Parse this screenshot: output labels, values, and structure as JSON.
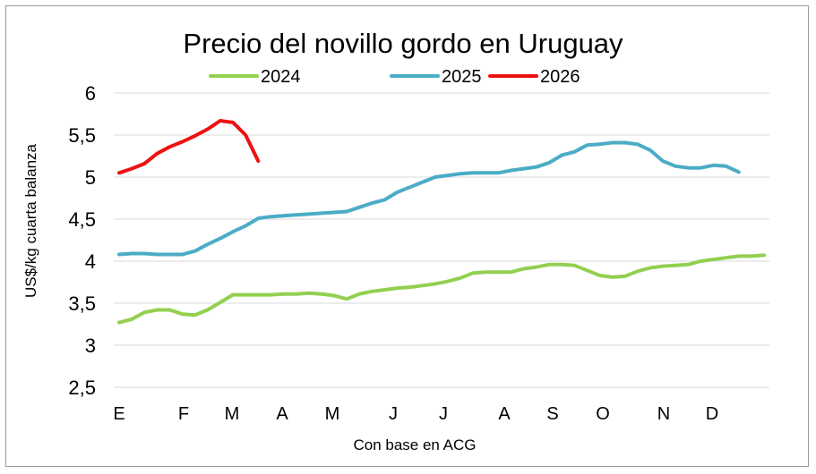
{
  "chart_data": {
    "type": "line",
    "title": "Precio del novillo gordo en Uruguay",
    "xlabel": "Con base en ACG",
    "ylabel": "US$/kg cuarta balanza",
    "ylim": [
      2.5,
      6
    ],
    "y_ticks": [
      "2,5",
      "3",
      "3,5",
      "4",
      "4,5",
      "5",
      "5,5",
      "6"
    ],
    "x_categories": [
      "E",
      "F",
      "M",
      "A",
      "M",
      "J",
      "J",
      "A",
      "S",
      "O",
      "N",
      "D"
    ],
    "x_unit": "week of year",
    "grid": true,
    "legend_position": "top",
    "series": [
      {
        "name": "2024",
        "color": "#92d050",
        "x": [
          1,
          2,
          3,
          4,
          5,
          6,
          7,
          8,
          9,
          10,
          11,
          12,
          13,
          14,
          15,
          16,
          17,
          18,
          19,
          20,
          21,
          22,
          23,
          24,
          25,
          26,
          27,
          28,
          29,
          30,
          31,
          32,
          33,
          34,
          35,
          36,
          37,
          38,
          39,
          40,
          41,
          42,
          43,
          44,
          45,
          46,
          47,
          48,
          49,
          50,
          51,
          52
        ],
        "values": [
          3.27,
          3.31,
          3.39,
          3.42,
          3.42,
          3.37,
          3.36,
          3.42,
          3.51,
          3.6,
          3.6,
          3.6,
          3.6,
          3.61,
          3.61,
          3.62,
          3.61,
          3.59,
          3.55,
          3.61,
          3.64,
          3.66,
          3.68,
          3.69,
          3.71,
          3.73,
          3.76,
          3.8,
          3.86,
          3.87,
          3.87,
          3.87,
          3.91,
          3.93,
          3.96,
          3.96,
          3.95,
          3.89,
          3.83,
          3.81,
          3.82,
          3.88,
          3.92,
          3.94,
          3.95,
          3.96,
          4.0,
          4.02,
          4.04,
          4.06,
          4.06,
          4.07
        ]
      },
      {
        "name": "2025",
        "color": "#4bacc6",
        "x": [
          1,
          2,
          3,
          4,
          5,
          6,
          7,
          8,
          9,
          10,
          11,
          12,
          13,
          14,
          15,
          16,
          17,
          18,
          19,
          20,
          21,
          22,
          23,
          24,
          25,
          26,
          27,
          28,
          29,
          30,
          31,
          32,
          33,
          34,
          35,
          36,
          37,
          38,
          39,
          40,
          41,
          42,
          43,
          44,
          45,
          46,
          47,
          48,
          49,
          50
        ],
        "values": [
          4.08,
          4.09,
          4.09,
          4.08,
          4.08,
          4.08,
          4.12,
          4.2,
          4.27,
          4.35,
          4.42,
          4.51,
          4.53,
          4.54,
          4.55,
          4.56,
          4.57,
          4.58,
          4.59,
          4.64,
          4.69,
          4.73,
          4.82,
          4.88,
          4.94,
          5.0,
          5.02,
          5.04,
          5.05,
          5.05,
          5.05,
          5.08,
          5.1,
          5.12,
          5.17,
          5.26,
          5.3,
          5.38,
          5.39,
          5.41,
          5.41,
          5.39,
          5.32,
          5.19,
          5.13,
          5.11,
          5.11,
          5.14,
          5.13,
          5.06
        ]
      },
      {
        "name": "2026",
        "color": "#ee1111",
        "x": [
          1,
          2,
          3,
          4,
          5,
          6,
          7,
          8,
          9,
          10,
          11,
          12,
          13
        ],
        "values": [
          5.05,
          5.1,
          5.16,
          5.28,
          5.36,
          5.42,
          5.49,
          5.57,
          5.67,
          5.65,
          5.5,
          5.19,
          null
        ]
      }
    ]
  }
}
